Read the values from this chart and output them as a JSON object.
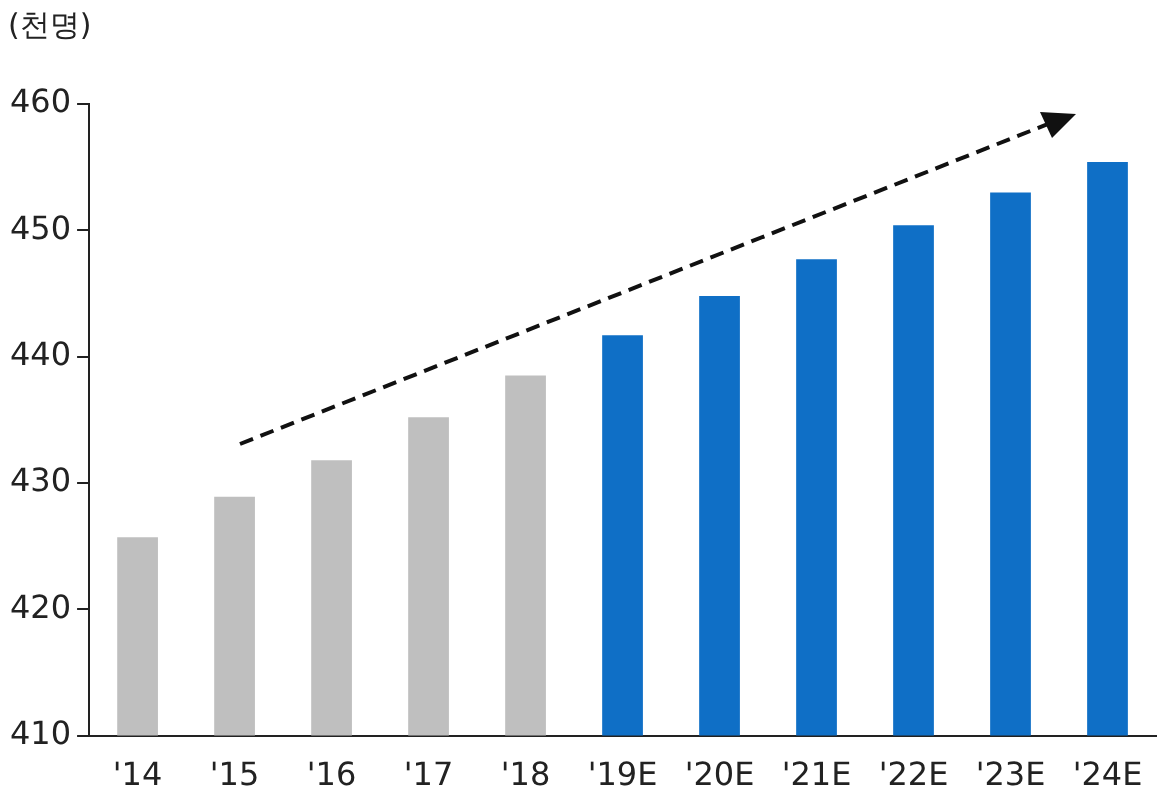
{
  "chart_data": {
    "type": "bar",
    "ylabel": "(천명)",
    "categories": [
      "'14",
      "'15",
      "'16",
      "'17",
      "'18",
      "'19E",
      "'20E",
      "'21E",
      "'22E",
      "'23E",
      "'24E"
    ],
    "values": [
      425.7,
      428.9,
      431.8,
      435.2,
      438.5,
      441.7,
      444.8,
      447.7,
      450.4,
      453.0,
      455.4
    ],
    "colors": [
      "#bfbfbf",
      "#bfbfbf",
      "#bfbfbf",
      "#bfbfbf",
      "#bfbfbf",
      "#0f6fc6",
      "#0f6fc6",
      "#0f6fc6",
      "#0f6fc6",
      "#0f6fc6",
      "#0f6fc6"
    ],
    "ylim": [
      410,
      460
    ],
    "yticks": [
      410,
      420,
      430,
      440,
      450,
      460
    ],
    "grid": false,
    "legend": false
  }
}
